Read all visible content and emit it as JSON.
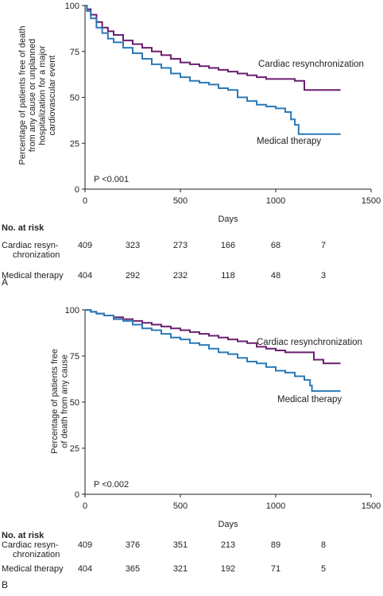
{
  "chart_data": [
    {
      "panel": "A",
      "type": "line",
      "ylabel_lines": [
        "Percentage of patients free of death",
        "from any cause or unplanned",
        "hospitalization for a major",
        "cardiovascular event"
      ],
      "xlabel": "Days",
      "xlim": [
        0,
        1500
      ],
      "ylim": [
        0,
        100
      ],
      "xticks": [
        0,
        500,
        1000,
        1500
      ],
      "yticks": [
        0,
        25,
        50,
        75,
        100
      ],
      "pvalue": "P <0.001",
      "colors": {
        "crt": "#6a1e6e",
        "med": "#2a7ab8"
      },
      "series": [
        {
          "name": "Cardiac resynchronization",
          "key": "crt",
          "points": [
            [
              0,
              100
            ],
            [
              10,
              98
            ],
            [
              30,
              95
            ],
            [
              60,
              91
            ],
            [
              90,
              88
            ],
            [
              120,
              86
            ],
            [
              150,
              84
            ],
            [
              200,
              81
            ],
            [
              250,
              79
            ],
            [
              300,
              77
            ],
            [
              350,
              75
            ],
            [
              400,
              73
            ],
            [
              450,
              71
            ],
            [
              500,
              69
            ],
            [
              550,
              68
            ],
            [
              600,
              67
            ],
            [
              650,
              66
            ],
            [
              700,
              65
            ],
            [
              750,
              64
            ],
            [
              800,
              63
            ],
            [
              850,
              62
            ],
            [
              900,
              61
            ],
            [
              950,
              60
            ],
            [
              1000,
              60
            ],
            [
              1050,
              60
            ],
            [
              1100,
              59
            ],
            [
              1150,
              59
            ],
            [
              1150,
              54
            ],
            [
              1200,
              54
            ],
            [
              1340,
              54
            ]
          ]
        },
        {
          "name": "Medical therapy",
          "key": "med",
          "points": [
            [
              0,
              100
            ],
            [
              10,
              97
            ],
            [
              30,
              93
            ],
            [
              60,
              88
            ],
            [
              90,
              85
            ],
            [
              120,
              82
            ],
            [
              150,
              80
            ],
            [
              200,
              77
            ],
            [
              250,
              74
            ],
            [
              300,
              71
            ],
            [
              350,
              68
            ],
            [
              400,
              66
            ],
            [
              450,
              63
            ],
            [
              500,
              61
            ],
            [
              550,
              59
            ],
            [
              600,
              58
            ],
            [
              650,
              57
            ],
            [
              700,
              55
            ],
            [
              750,
              54
            ],
            [
              800,
              50
            ],
            [
              850,
              48
            ],
            [
              900,
              46
            ],
            [
              950,
              45
            ],
            [
              1000,
              44
            ],
            [
              1050,
              42
            ],
            [
              1080,
              38
            ],
            [
              1100,
              35
            ],
            [
              1120,
              30
            ],
            [
              1200,
              30
            ],
            [
              1340,
              30
            ]
          ]
        }
      ],
      "risk_table": {
        "header": "No. at risk",
        "rows": [
          {
            "label_lines": [
              "Cardiac resyn-",
              "chronization"
            ],
            "values": [
              "409",
              "323",
              "273",
              "166",
              "68",
              "7"
            ]
          },
          {
            "label_lines": [
              "Medical therapy"
            ],
            "values": [
              "404",
              "292",
              "232",
              "118",
              "48",
              "3"
            ]
          }
        ]
      }
    },
    {
      "panel": "B",
      "type": "line",
      "ylabel_lines": [
        "Percentage of patients free",
        "of death from any cause"
      ],
      "xlabel": "Days",
      "xlim": [
        0,
        1500
      ],
      "ylim": [
        0,
        100
      ],
      "xticks": [
        0,
        500,
        1000,
        1500
      ],
      "yticks": [
        0,
        25,
        50,
        75,
        100
      ],
      "pvalue": "P <0.002",
      "colors": {
        "crt": "#6a1e6e",
        "med": "#2a7ab8"
      },
      "series": [
        {
          "name": "Cardiac resynchronization",
          "key": "crt",
          "points": [
            [
              0,
              100
            ],
            [
              30,
              99
            ],
            [
              60,
              98
            ],
            [
              100,
              97
            ],
            [
              150,
              96
            ],
            [
              200,
              95
            ],
            [
              250,
              94
            ],
            [
              300,
              93
            ],
            [
              350,
              92
            ],
            [
              400,
              91
            ],
            [
              450,
              90
            ],
            [
              500,
              89
            ],
            [
              550,
              88
            ],
            [
              600,
              87
            ],
            [
              650,
              86
            ],
            [
              700,
              85
            ],
            [
              750,
              84
            ],
            [
              800,
              83
            ],
            [
              850,
              82
            ],
            [
              900,
              80
            ],
            [
              950,
              79
            ],
            [
              1000,
              78
            ],
            [
              1050,
              77
            ],
            [
              1100,
              77
            ],
            [
              1150,
              77
            ],
            [
              1200,
              73
            ],
            [
              1250,
              71
            ],
            [
              1340,
              71
            ]
          ]
        },
        {
          "name": "Medical therapy",
          "key": "med",
          "points": [
            [
              0,
              100
            ],
            [
              30,
              99
            ],
            [
              60,
              98
            ],
            [
              100,
              97
            ],
            [
              150,
              95
            ],
            [
              200,
              94
            ],
            [
              250,
              92
            ],
            [
              300,
              90
            ],
            [
              350,
              89
            ],
            [
              400,
              87
            ],
            [
              450,
              85
            ],
            [
              500,
              84
            ],
            [
              550,
              82
            ],
            [
              600,
              81
            ],
            [
              650,
              79
            ],
            [
              700,
              77
            ],
            [
              750,
              76
            ],
            [
              800,
              74
            ],
            [
              850,
              72
            ],
            [
              900,
              71
            ],
            [
              950,
              69
            ],
            [
              1000,
              67
            ],
            [
              1050,
              66
            ],
            [
              1100,
              64
            ],
            [
              1150,
              62
            ],
            [
              1180,
              59
            ],
            [
              1190,
              56
            ],
            [
              1250,
              56
            ],
            [
              1340,
              56
            ]
          ]
        }
      ],
      "risk_table": {
        "header": "No. at risk",
        "rows": [
          {
            "label_lines": [
              "Cardiac resyn-",
              "chronization"
            ],
            "values": [
              "409",
              "376",
              "351",
              "213",
              "89",
              "8"
            ]
          },
          {
            "label_lines": [
              "Medical therapy"
            ],
            "values": [
              "404",
              "365",
              "321",
              "192",
              "71",
              "5"
            ]
          }
        ]
      }
    }
  ]
}
